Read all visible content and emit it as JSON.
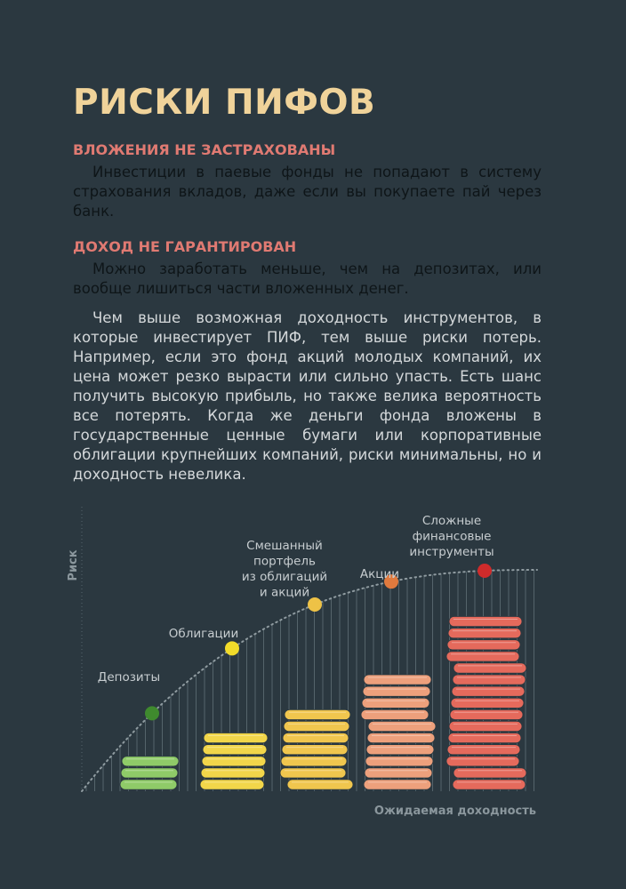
{
  "page": {
    "title": "РИСКИ ПИФОВ",
    "sections": [
      {
        "heading": "ВЛОЖЕНИЯ НЕ ЗАСТРАХОВАНЫ",
        "text": "Инвестиции в паевые фонды не попадают в систему страхования вкладов, даже если вы покупаете пай через банк."
      },
      {
        "heading": "ДОХОД НЕ ГАРАНТИРОВАН",
        "text": "Можно заработать меньше, чем на депозитах, или вообще лишиться части вложенных денег."
      }
    ],
    "body_text": "Чем выше возможная доходность инструментов, в которые инвестирует ПИФ, тем выше риски потерь. Например, если это фонд акций молодых компаний, их цена может резко вырасти или сильно упасть. Есть шанс получить высокую прибыль, но также велика вероятность все потерять. Когда же деньги фонда вложены в государственные ценные бумаги или корпоративные облигации крупнейших компаний, риски минимальны, но и доходность невелика."
  },
  "chart_data": {
    "type": "scatter",
    "ylabel": "Риск",
    "xlabel": "Ожидаемая доходность",
    "categories": [
      {
        "label": [
          "Депозиты"
        ],
        "risk_rank": 1,
        "return_rank": 1,
        "color": "#3f8a2e",
        "coin_color": "#8fcb68",
        "coin_stack_height": 3
      },
      {
        "label": [
          "Облигации"
        ],
        "risk_rank": 2,
        "return_rank": 2,
        "color": "#f2dc2a",
        "coin_color": "#f2d64a",
        "coin_stack_height": 5
      },
      {
        "label": [
          "Смешанный",
          "портфель",
          "из облигаций",
          "и акций"
        ],
        "risk_rank": 3,
        "return_rank": 3,
        "color": "#eec246",
        "coin_color": "#f0c64e",
        "coin_stack_height": 7
      },
      {
        "label": [
          "Акции"
        ],
        "risk_rank": 4,
        "return_rank": 4,
        "color": "#e07a3e",
        "coin_color": "#eda07c",
        "coin_stack_height": 10
      },
      {
        "label": [
          "Сложные",
          "финансовые",
          "инструменты"
        ],
        "risk_rank": 5,
        "return_rank": 5,
        "color": "#cf2b2b",
        "coin_color": "#e56a5c",
        "coin_stack_height": 15
      }
    ],
    "grid": "vertical dotted lines",
    "trend": "dotted curve"
  }
}
